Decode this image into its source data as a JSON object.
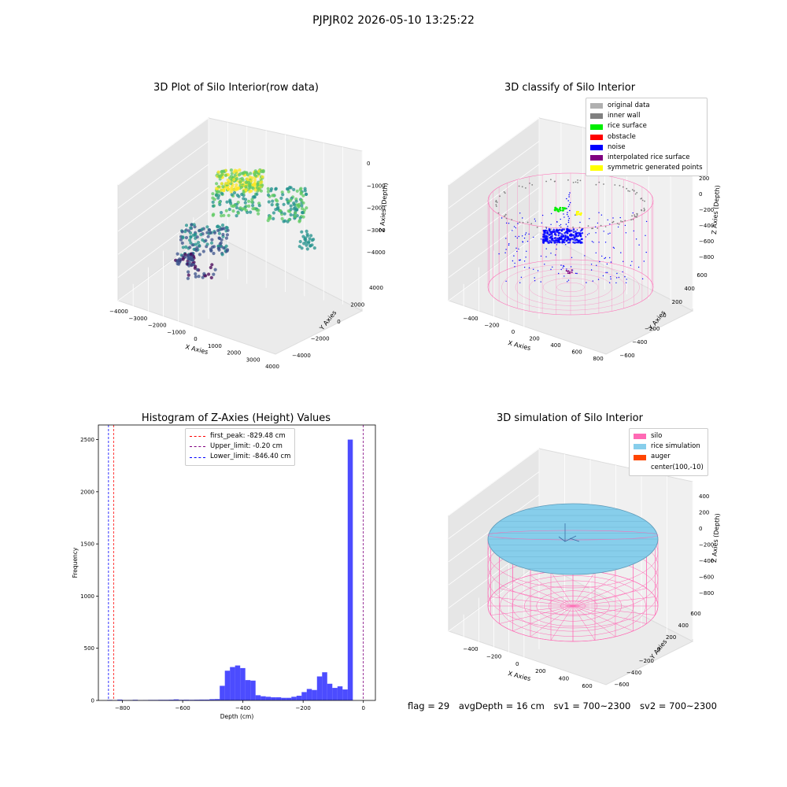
{
  "suptitle": "PJPJR02 2026-05-10 13:25:22",
  "panels": {
    "raw": {
      "title": "3D Plot of Silo Interior(row data)",
      "xlabel": "X Axies",
      "ylabel": "Y Axies",
      "zlabel": "Z Axies (Depth)",
      "xticks": [
        "−4000",
        "−3000",
        "−2000",
        "−1000",
        "0",
        "1000",
        "2000",
        "3000",
        "4000"
      ],
      "yticks": [
        "−4000",
        "−2000",
        "0",
        "2000",
        "4000"
      ],
      "zticks": [
        "0",
        "−1000",
        "−2000",
        "−3000",
        "−4000"
      ]
    },
    "classify": {
      "title": "3D classify of Silo Interior",
      "xlabel": "X Axies",
      "ylabel": "Y Axies",
      "zlabel": "Z Axies (Depth)",
      "xticks": [
        "−400",
        "−200",
        "0",
        "200",
        "400",
        "600",
        "800"
      ],
      "yticks": [
        "−600",
        "−400",
        "−200",
        "0",
        "200",
        "400",
        "600"
      ],
      "zticks": [
        "200",
        "0",
        "−200",
        "−400",
        "−600",
        "−800"
      ],
      "legend": [
        {
          "label": "original data",
          "color": "#b0b0b0"
        },
        {
          "label": "inner wall",
          "color": "#808080"
        },
        {
          "label": "rice surface",
          "color": "#00ee00"
        },
        {
          "label": "obstacle",
          "color": "#ff0000"
        },
        {
          "label": "noise",
          "color": "#0000ff"
        },
        {
          "label": "interpolated rice surface",
          "color": "#800080"
        },
        {
          "label": "symmetric generated points",
          "color": "#ffff00"
        }
      ]
    },
    "simulation": {
      "title": "3D simulation of Silo Interior",
      "xlabel": "X Axies",
      "ylabel": "Y Axies",
      "zlabel": "Z Axies (Depth)",
      "xticks": [
        "−400",
        "−200",
        "0",
        "200",
        "400",
        "600"
      ],
      "yticks": [
        "−600",
        "−400",
        "−200",
        "0",
        "200",
        "400",
        "600"
      ],
      "zticks": [
        "400",
        "200",
        "0",
        "−200",
        "−400",
        "−600",
        "−800"
      ],
      "legend": [
        {
          "label": "silo",
          "color": "#ff69b4"
        },
        {
          "label": "rice simulation",
          "color": "#87ceeb"
        },
        {
          "label": "auger",
          "color": "#ff4500"
        },
        {
          "label": "center(100,-10)",
          "color": ""
        }
      ]
    }
  },
  "chart_data": {
    "type": "bar",
    "title": "Histogram of Z-Axies (Height) Values",
    "xlabel": "Depth (cm)",
    "ylabel": "Frequency",
    "xlim": [
      -880,
      40
    ],
    "ylim": [
      0,
      2640
    ],
    "xticks": [
      -800,
      -600,
      -400,
      -200,
      0
    ],
    "xtick_labels": [
      "−800",
      "−600",
      "−400",
      "−200",
      "0"
    ],
    "yticks": [
      0,
      500,
      1000,
      1500,
      2000,
      2500
    ],
    "bin_width": 17,
    "bins": [
      {
        "x": -851,
        "value": 5
      },
      {
        "x": -834,
        "value": 2
      },
      {
        "x": -817,
        "value": 8
      },
      {
        "x": -800,
        "value": 3
      },
      {
        "x": -783,
        "value": 4
      },
      {
        "x": -766,
        "value": 6
      },
      {
        "x": -749,
        "value": 3
      },
      {
        "x": -732,
        "value": 4
      },
      {
        "x": -715,
        "value": 5
      },
      {
        "x": -698,
        "value": 5
      },
      {
        "x": -681,
        "value": 6
      },
      {
        "x": -664,
        "value": 6
      },
      {
        "x": -647,
        "value": 7
      },
      {
        "x": -630,
        "value": 10
      },
      {
        "x": -613,
        "value": 6
      },
      {
        "x": -596,
        "value": 7
      },
      {
        "x": -579,
        "value": 6
      },
      {
        "x": -562,
        "value": 7
      },
      {
        "x": -545,
        "value": 8
      },
      {
        "x": -528,
        "value": 8
      },
      {
        "x": -511,
        "value": 12
      },
      {
        "x": -494,
        "value": 13
      },
      {
        "x": -477,
        "value": 140
      },
      {
        "x": -460,
        "value": 285
      },
      {
        "x": -443,
        "value": 320
      },
      {
        "x": -426,
        "value": 335
      },
      {
        "x": -409,
        "value": 310
      },
      {
        "x": -392,
        "value": 195
      },
      {
        "x": -375,
        "value": 190
      },
      {
        "x": -358,
        "value": 50
      },
      {
        "x": -341,
        "value": 40
      },
      {
        "x": -324,
        "value": 35
      },
      {
        "x": -307,
        "value": 30
      },
      {
        "x": -290,
        "value": 30
      },
      {
        "x": -273,
        "value": 25
      },
      {
        "x": -256,
        "value": 25
      },
      {
        "x": -239,
        "value": 35
      },
      {
        "x": -222,
        "value": 45
      },
      {
        "x": -205,
        "value": 80
      },
      {
        "x": -188,
        "value": 110
      },
      {
        "x": -171,
        "value": 100
      },
      {
        "x": -154,
        "value": 230
      },
      {
        "x": -137,
        "value": 270
      },
      {
        "x": -120,
        "value": 160
      },
      {
        "x": -103,
        "value": 120
      },
      {
        "x": -86,
        "value": 135
      },
      {
        "x": -69,
        "value": 105
      },
      {
        "x": -52,
        "value": 2500
      }
    ],
    "vlines": [
      {
        "label": "first_peak: -829.48 cm",
        "x": -829.48,
        "color": "#ff0000"
      },
      {
        "label": "Upper_limit: -0.20 cm",
        "x": -0.2,
        "color": "#800080"
      },
      {
        "label": "Lower_limit: -846.40 cm",
        "x": -846.4,
        "color": "#0000ff"
      }
    ]
  },
  "footer": {
    "flag": "flag = 29",
    "avg_depth": "avgDepth = 16 cm",
    "sv1": "sv1 = 700~2300",
    "sv2": "sv2 = 700~2300"
  },
  "colors": {
    "bar": "#0000ff",
    "bar_alpha": 0.7,
    "pane": "#f2f2f2",
    "grid": "#d9d9d9"
  }
}
